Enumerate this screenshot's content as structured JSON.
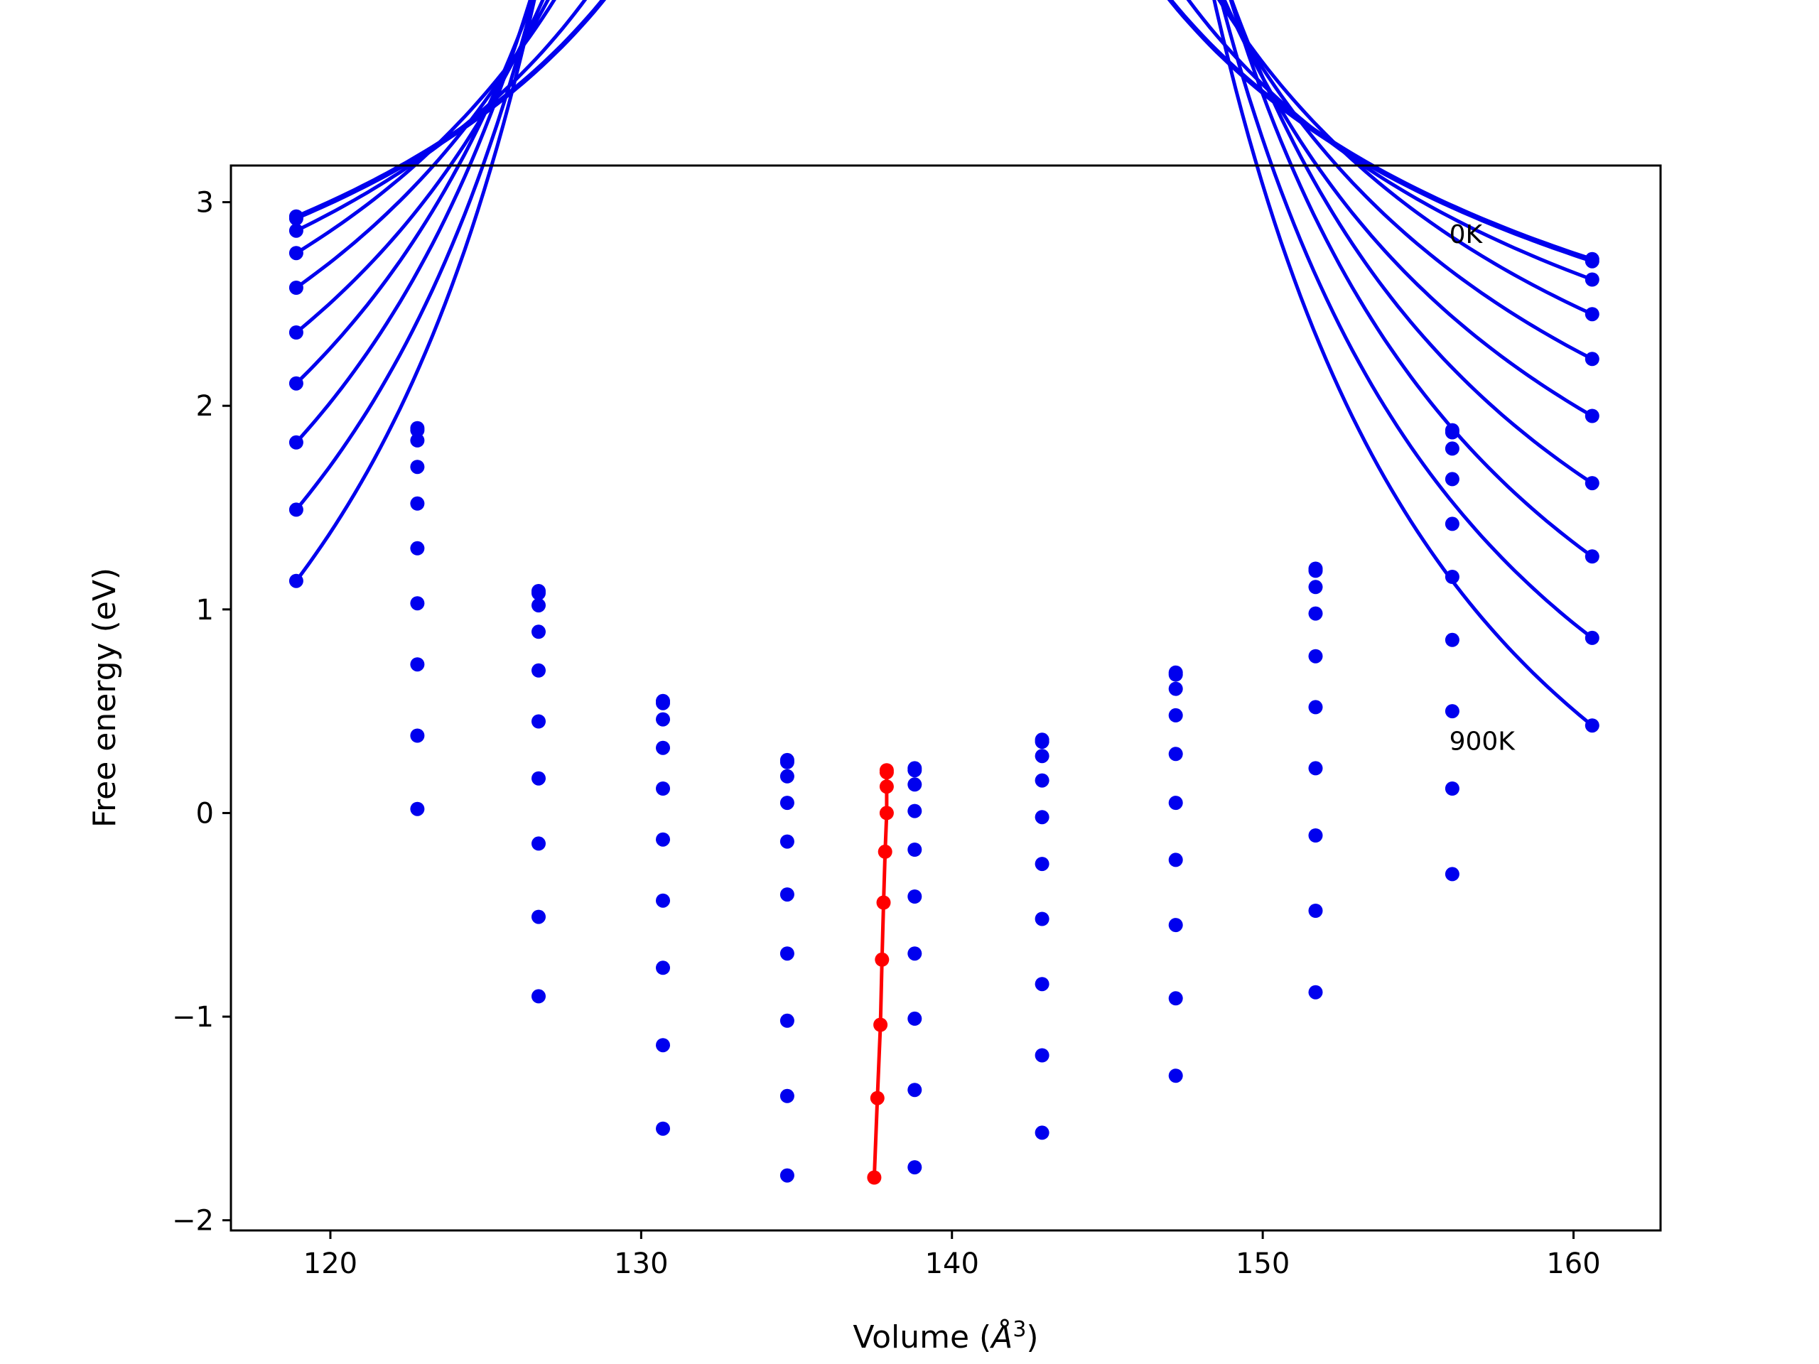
{
  "chart_data": {
    "type": "line",
    "title": "",
    "xlabel": "Volume (",
    "xlabel_symbol": "Å",
    "xlabel_exp": "3",
    "xlabel_close": ")",
    "ylabel": "Free energy (eV)",
    "xlim": [
      116.8,
      162.8
    ],
    "ylim": [
      -2.05,
      3.18
    ],
    "xticks": [
      120,
      130,
      140,
      150,
      160
    ],
    "yticks": [
      -2,
      -1,
      0,
      1,
      2,
      3
    ],
    "xtick_labels": [
      "120",
      "130",
      "140",
      "150",
      "160"
    ],
    "ytick_labels": [
      "−2",
      "−1",
      "0",
      "1",
      "2",
      "3"
    ],
    "grid": false,
    "legend": "none",
    "annotations": [
      {
        "text": "0K",
        "x": 156.0,
        "y": 2.8
      },
      {
        "text": "900K",
        "x": 156.0,
        "y": 0.31
      }
    ],
    "colors": {
      "curves": "#0000ee",
      "minima": "#ff0000"
    },
    "sample_volumes": [
      118.9,
      122.8,
      126.7,
      130.7,
      134.7,
      138.8,
      142.9,
      147.2,
      151.7,
      156.1,
      160.6
    ],
    "series": [
      {
        "min_volume": 137.9,
        "min_energy": 0.21,
        "points": [
          2.93,
          1.89,
          1.09,
          0.55,
          0.26,
          0.22,
          0.36,
          0.69,
          1.2,
          1.88,
          2.72
        ]
      },
      {
        "min_volume": 137.9,
        "min_energy": 0.2,
        "points": [
          2.92,
          1.88,
          1.08,
          0.54,
          0.25,
          0.21,
          0.35,
          0.68,
          1.19,
          1.87,
          2.71
        ]
      },
      {
        "min_volume": 137.9,
        "min_energy": 0.13,
        "points": [
          2.86,
          1.83,
          1.02,
          0.46,
          0.18,
          0.14,
          0.28,
          0.61,
          1.11,
          1.79,
          2.62
        ]
      },
      {
        "min_volume": 137.9,
        "min_energy": 0.0,
        "points": [
          2.75,
          1.7,
          0.89,
          0.32,
          0.05,
          0.01,
          0.16,
          0.48,
          0.98,
          1.64,
          2.45
        ]
      },
      {
        "min_volume": 137.85,
        "min_energy": -0.19,
        "points": [
          2.58,
          1.52,
          0.7,
          0.12,
          -0.14,
          -0.18,
          -0.02,
          0.29,
          0.77,
          1.42,
          2.23
        ]
      },
      {
        "min_volume": 137.8,
        "min_energy": -0.44,
        "points": [
          2.36,
          1.3,
          0.45,
          -0.13,
          -0.4,
          -0.41,
          -0.25,
          0.05,
          0.52,
          1.16,
          1.95
        ]
      },
      {
        "min_volume": 137.75,
        "min_energy": -0.72,
        "points": [
          2.11,
          1.03,
          0.17,
          -0.43,
          -0.69,
          -0.69,
          -0.52,
          -0.23,
          0.22,
          0.85,
          1.62
        ]
      },
      {
        "min_volume": 137.7,
        "min_energy": -1.04,
        "points": [
          1.82,
          0.73,
          -0.15,
          -0.76,
          -1.02,
          -1.01,
          -0.84,
          -0.55,
          -0.11,
          0.5,
          1.26
        ]
      },
      {
        "min_volume": 137.6,
        "min_energy": -1.4,
        "points": [
          1.49,
          0.38,
          -0.51,
          -1.14,
          -1.39,
          -1.36,
          -1.19,
          -0.91,
          -0.48,
          0.12,
          0.86
        ]
      },
      {
        "min_volume": 137.5,
        "min_energy": -1.79,
        "points": [
          1.14,
          0.02,
          -0.9,
          -1.55,
          -1.78,
          -1.74,
          -1.57,
          -1.29,
          -0.88,
          -0.3,
          0.43
        ]
      }
    ]
  }
}
